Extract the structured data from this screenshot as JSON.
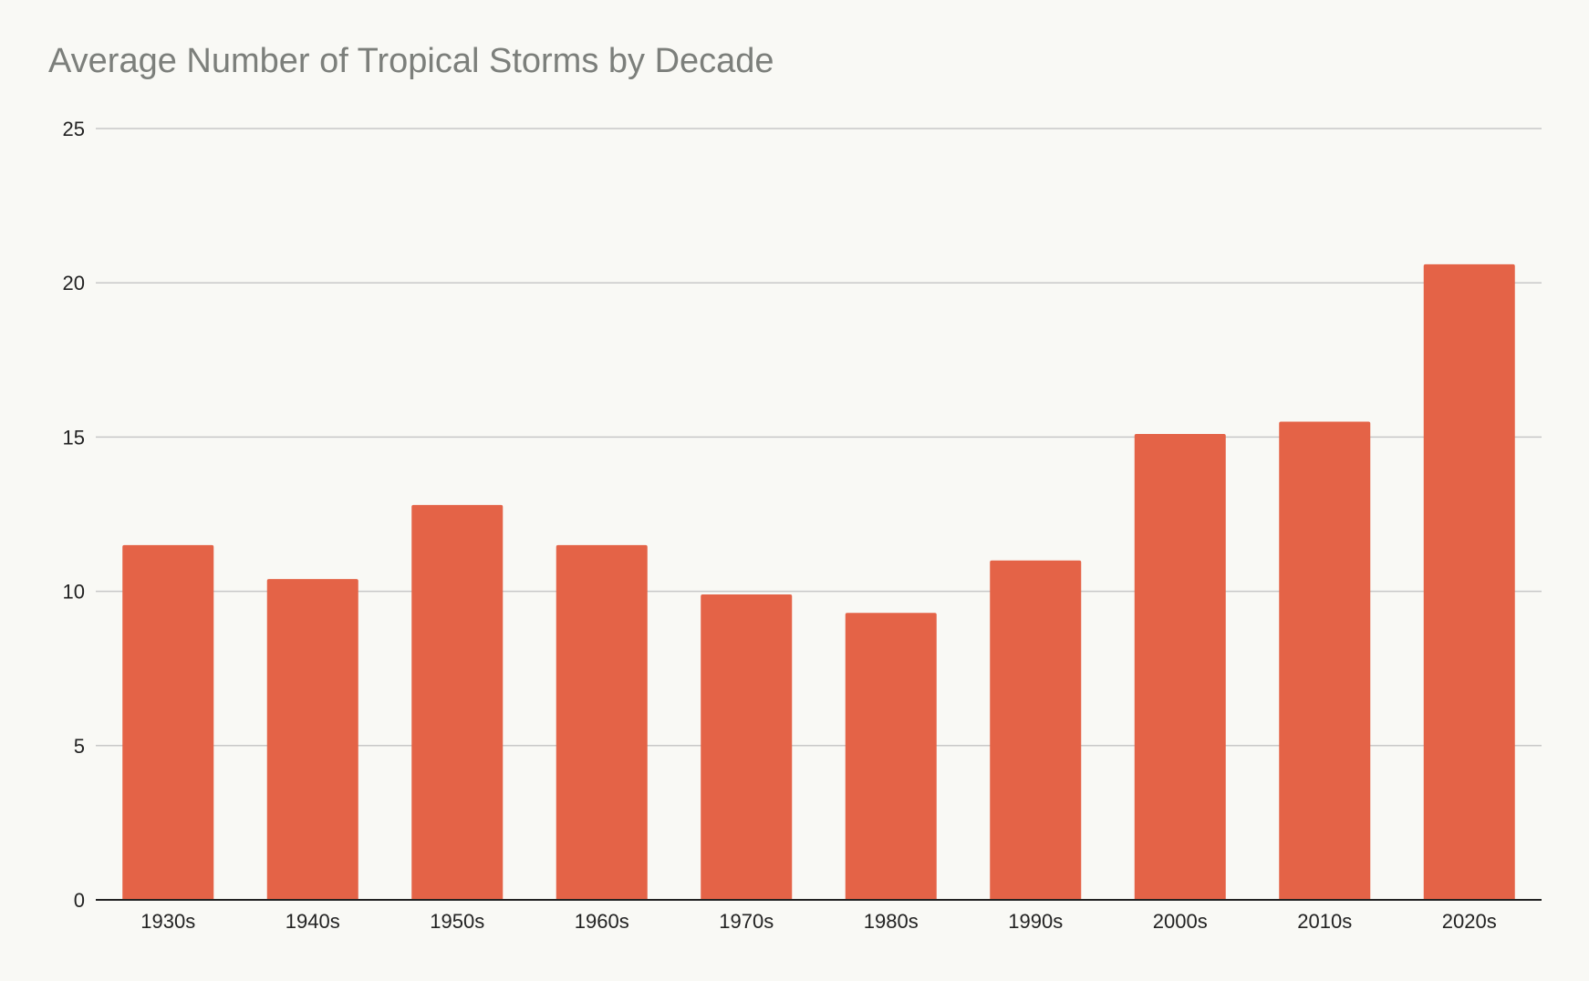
{
  "chart_data": {
    "type": "bar",
    "title": "Average Number of Tropical Storms by Decade",
    "xlabel": "",
    "ylabel": "",
    "categories": [
      "1930s",
      "1940s",
      "1950s",
      "1960s",
      "1970s",
      "1980s",
      "1990s",
      "2000s",
      "2010s",
      "2020s"
    ],
    "values": [
      11.5,
      10.4,
      12.8,
      11.5,
      9.9,
      9.3,
      11.0,
      15.1,
      15.5,
      20.6
    ],
    "ylim": [
      0,
      25
    ],
    "yticks": [
      0,
      5,
      10,
      15,
      20,
      25
    ],
    "grid": true,
    "legend": "none",
    "colors": {
      "bar": "#e46347",
      "grid": "#c8c8c8",
      "axis": "#222222",
      "title": "#7c7f7b",
      "background": "#f9f9f5"
    }
  }
}
